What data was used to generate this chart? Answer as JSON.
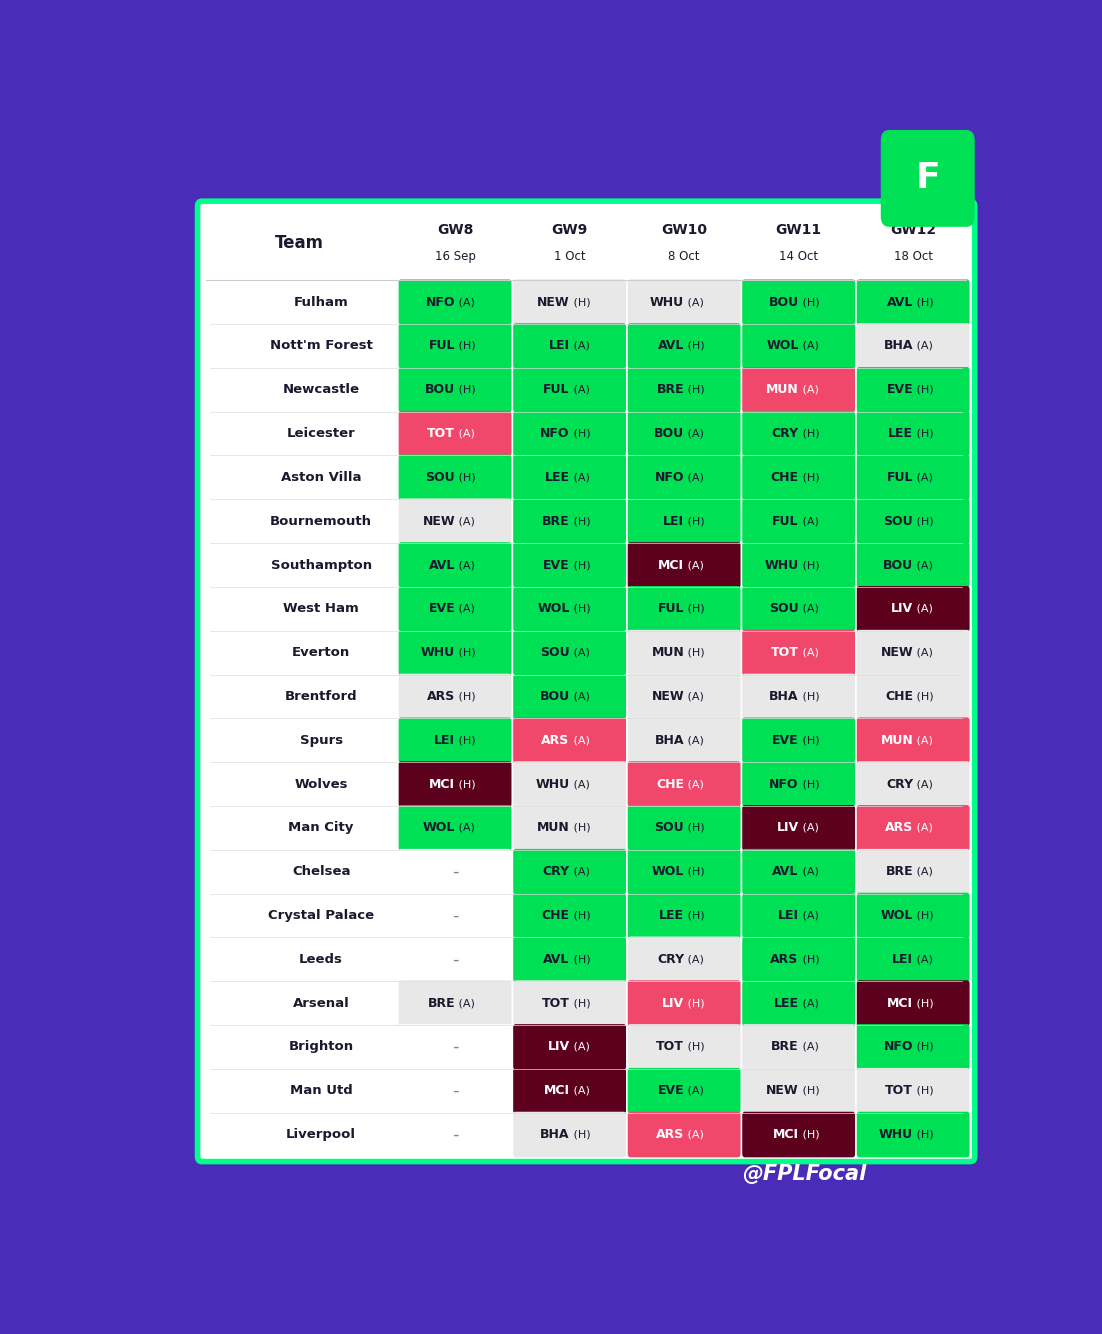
{
  "teams": [
    "Fulham",
    "Nott'm Forest",
    "Newcastle",
    "Leicester",
    "Aston Villa",
    "Bournemouth",
    "Southampton",
    "West Ham",
    "Everton",
    "Brentford",
    "Spurs",
    "Wolves",
    "Man City",
    "Chelsea",
    "Crystal Palace",
    "Leeds",
    "Arsenal",
    "Brighton",
    "Man Utd",
    "Liverpool"
  ],
  "fixtures": [
    [
      [
        "NFO (A)",
        "green"
      ],
      [
        "NEW (H)",
        "lightgray"
      ],
      [
        "WHU (A)",
        "lightgray"
      ],
      [
        "BOU (H)",
        "green"
      ],
      [
        "AVL (H)",
        "green"
      ]
    ],
    [
      [
        "FUL (H)",
        "green"
      ],
      [
        "LEI (A)",
        "green"
      ],
      [
        "AVL (H)",
        "green"
      ],
      [
        "WOL (A)",
        "green"
      ],
      [
        "BHA (A)",
        "lightgray"
      ]
    ],
    [
      [
        "BOU (H)",
        "green"
      ],
      [
        "FUL (A)",
        "green"
      ],
      [
        "BRE (H)",
        "green"
      ],
      [
        "MUN (A)",
        "red"
      ],
      [
        "EVE (H)",
        "green"
      ]
    ],
    [
      [
        "TOT (A)",
        "red"
      ],
      [
        "NFO (H)",
        "green"
      ],
      [
        "BOU (A)",
        "green"
      ],
      [
        "CRY (H)",
        "green"
      ],
      [
        "LEE (H)",
        "green"
      ]
    ],
    [
      [
        "SOU (H)",
        "green"
      ],
      [
        "LEE (A)",
        "green"
      ],
      [
        "NFO (A)",
        "green"
      ],
      [
        "CHE (H)",
        "green"
      ],
      [
        "FUL (A)",
        "green"
      ]
    ],
    [
      [
        "NEW (A)",
        "lightgray"
      ],
      [
        "BRE (H)",
        "green"
      ],
      [
        "LEI (H)",
        "green"
      ],
      [
        "FUL (A)",
        "green"
      ],
      [
        "SOU (H)",
        "green"
      ]
    ],
    [
      [
        "AVL (A)",
        "green"
      ],
      [
        "EVE (H)",
        "green"
      ],
      [
        "MCI (A)",
        "darkred"
      ],
      [
        "WHU (H)",
        "green"
      ],
      [
        "BOU (A)",
        "green"
      ]
    ],
    [
      [
        "EVE (A)",
        "green"
      ],
      [
        "WOL (H)",
        "green"
      ],
      [
        "FUL (H)",
        "green"
      ],
      [
        "SOU (A)",
        "green"
      ],
      [
        "LIV (A)",
        "darkred"
      ]
    ],
    [
      [
        "WHU (H)",
        "green"
      ],
      [
        "SOU (A)",
        "green"
      ],
      [
        "MUN (H)",
        "lightgray"
      ],
      [
        "TOT (A)",
        "red"
      ],
      [
        "NEW (A)",
        "lightgray"
      ]
    ],
    [
      [
        "ARS (H)",
        "lightgray"
      ],
      [
        "BOU (A)",
        "green"
      ],
      [
        "NEW (A)",
        "lightgray"
      ],
      [
        "BHA (H)",
        "lightgray"
      ],
      [
        "CHE (H)",
        "lightgray"
      ]
    ],
    [
      [
        "LEI (H)",
        "green"
      ],
      [
        "ARS (A)",
        "red"
      ],
      [
        "BHA (A)",
        "lightgray"
      ],
      [
        "EVE (H)",
        "green"
      ],
      [
        "MUN (A)",
        "red"
      ]
    ],
    [
      [
        "MCI (H)",
        "darkred"
      ],
      [
        "WHU (A)",
        "lightgray"
      ],
      [
        "CHE (A)",
        "red"
      ],
      [
        "NFO (H)",
        "green"
      ],
      [
        "CRY (A)",
        "lightgray"
      ]
    ],
    [
      [
        "WOL (A)",
        "green"
      ],
      [
        "MUN (H)",
        "lightgray"
      ],
      [
        "SOU (H)",
        "green"
      ],
      [
        "LIV (A)",
        "darkred"
      ],
      [
        "ARS (A)",
        "red"
      ]
    ],
    [
      [
        "",
        "white"
      ],
      [
        "CRY (A)",
        "green"
      ],
      [
        "WOL (H)",
        "green"
      ],
      [
        "AVL (A)",
        "green"
      ],
      [
        "BRE (A)",
        "lightgray"
      ]
    ],
    [
      [
        "",
        "white"
      ],
      [
        "CHE (H)",
        "green"
      ],
      [
        "LEE (H)",
        "green"
      ],
      [
        "LEI (A)",
        "green"
      ],
      [
        "WOL (H)",
        "green"
      ]
    ],
    [
      [
        "",
        "white"
      ],
      [
        "AVL (H)",
        "green"
      ],
      [
        "CRY (A)",
        "lightgray"
      ],
      [
        "ARS (H)",
        "green"
      ],
      [
        "LEI (A)",
        "green"
      ]
    ],
    [
      [
        "BRE (A)",
        "lightgray"
      ],
      [
        "TOT (H)",
        "lightgray"
      ],
      [
        "LIV (H)",
        "red"
      ],
      [
        "LEE (A)",
        "green"
      ],
      [
        "MCI (H)",
        "darkred"
      ]
    ],
    [
      [
        "",
        "white"
      ],
      [
        "LIV (A)",
        "darkred"
      ],
      [
        "TOT (H)",
        "lightgray"
      ],
      [
        "BRE (A)",
        "lightgray"
      ],
      [
        "NFO (H)",
        "green"
      ]
    ],
    [
      [
        "",
        "white"
      ],
      [
        "MCI (A)",
        "darkred"
      ],
      [
        "EVE (A)",
        "green"
      ],
      [
        "NEW (H)",
        "lightgray"
      ],
      [
        "TOT (H)",
        "lightgray"
      ]
    ],
    [
      [
        "",
        "white"
      ],
      [
        "BHA (H)",
        "lightgray"
      ],
      [
        "ARS (A)",
        "red"
      ],
      [
        "MCI (H)",
        "darkred"
      ],
      [
        "WHU (H)",
        "green"
      ]
    ]
  ],
  "col_headers": [
    "Team",
    "GW8",
    "GW9",
    "GW10",
    "GW11",
    "GW12"
  ],
  "col_dates": [
    "",
    "16 Sep",
    "1 Oct",
    "8 Oct",
    "14 Oct",
    "18 Oct"
  ],
  "color_map": {
    "green": "#00e054",
    "lightgray": "#e8e8e8",
    "red": "#f0476b",
    "darkred": "#5c001e",
    "white": "#ffffff"
  },
  "text_color_map": {
    "green": "#1a1a2e",
    "lightgray": "#1a1a2e",
    "red": "#ffffff",
    "darkred": "#ffffff",
    "white": "#555555"
  },
  "background_outer": "#4a2cb8",
  "background_table": "#ffffff",
  "border_color": "#00ff88",
  "header_text_color": "#1a1a2e",
  "dash_color": "#888888",
  "watermark": "@FPLFocal",
  "watermark_color": "#ffffff"
}
